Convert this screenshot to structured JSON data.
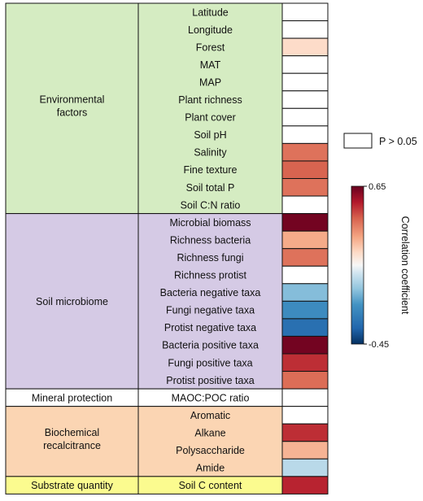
{
  "chart_data": {
    "type": "heatmap",
    "colorbar": {
      "label": "Correlation coefficient",
      "max_label": "0.65",
      "min_label": "-0.45",
      "vmin": -0.45,
      "vmax": 0.65,
      "colors_high": "#67001f",
      "colors_mid": "#f7f7f7",
      "colors_low": "#053061"
    },
    "legend": {
      "label": "P > 0.05",
      "color": "#ffffff"
    },
    "groups": [
      {
        "name": "Environmental factors",
        "color": "#d5ecc2",
        "rows": [
          {
            "label": "Latitude",
            "value": null
          },
          {
            "label": "Longitude",
            "value": null
          },
          {
            "label": "Forest",
            "value": 0.1
          },
          {
            "label": "MAT",
            "value": null
          },
          {
            "label": "MAP",
            "value": null
          },
          {
            "label": "Plant richness",
            "value": null
          },
          {
            "label": "Plant cover",
            "value": null
          },
          {
            "label": "Soil pH",
            "value": null
          },
          {
            "label": "Salinity",
            "value": 0.35
          },
          {
            "label": "Fine texture",
            "value": 0.38
          },
          {
            "label": "Soil total P",
            "value": 0.35
          },
          {
            "label": "Soil C:N ratio",
            "value": null
          }
        ]
      },
      {
        "name": "Soil microbiome",
        "color": "#d5cae5",
        "rows": [
          {
            "label": "Microbial biomass",
            "value": 0.63
          },
          {
            "label": "Richness bacteria",
            "value": 0.22
          },
          {
            "label": "Richness fungi",
            "value": 0.35
          },
          {
            "label": "Richness protist",
            "value": null
          },
          {
            "label": "Bacteria negative taxa",
            "value": -0.15
          },
          {
            "label": "Fungi negative taxa",
            "value": -0.25
          },
          {
            "label": "Protist negative taxa",
            "value": -0.33
          },
          {
            "label": "Bacteria positive taxa",
            "value": 0.63
          },
          {
            "label": "Fungi positive taxa",
            "value": 0.48
          },
          {
            "label": "Protist positive taxa",
            "value": 0.36
          }
        ]
      },
      {
        "name": "Mineral protection",
        "color": "#ffffff",
        "rows": [
          {
            "label": "MAOC:POC ratio",
            "value": null
          }
        ]
      },
      {
        "name": "Biochemical recalcitrance",
        "color": "#fbd5b3",
        "rows": [
          {
            "label": "Aromatic",
            "value": null
          },
          {
            "label": "Alkane",
            "value": 0.48
          },
          {
            "label": "Polysaccharide",
            "value": 0.2
          },
          {
            "label": "Amide",
            "value": -0.08
          }
        ]
      },
      {
        "name": "Substrate quantity",
        "color": "#fbfb8f",
        "rows": [
          {
            "label": "Soil C content",
            "value": 0.5
          }
        ]
      }
    ]
  }
}
